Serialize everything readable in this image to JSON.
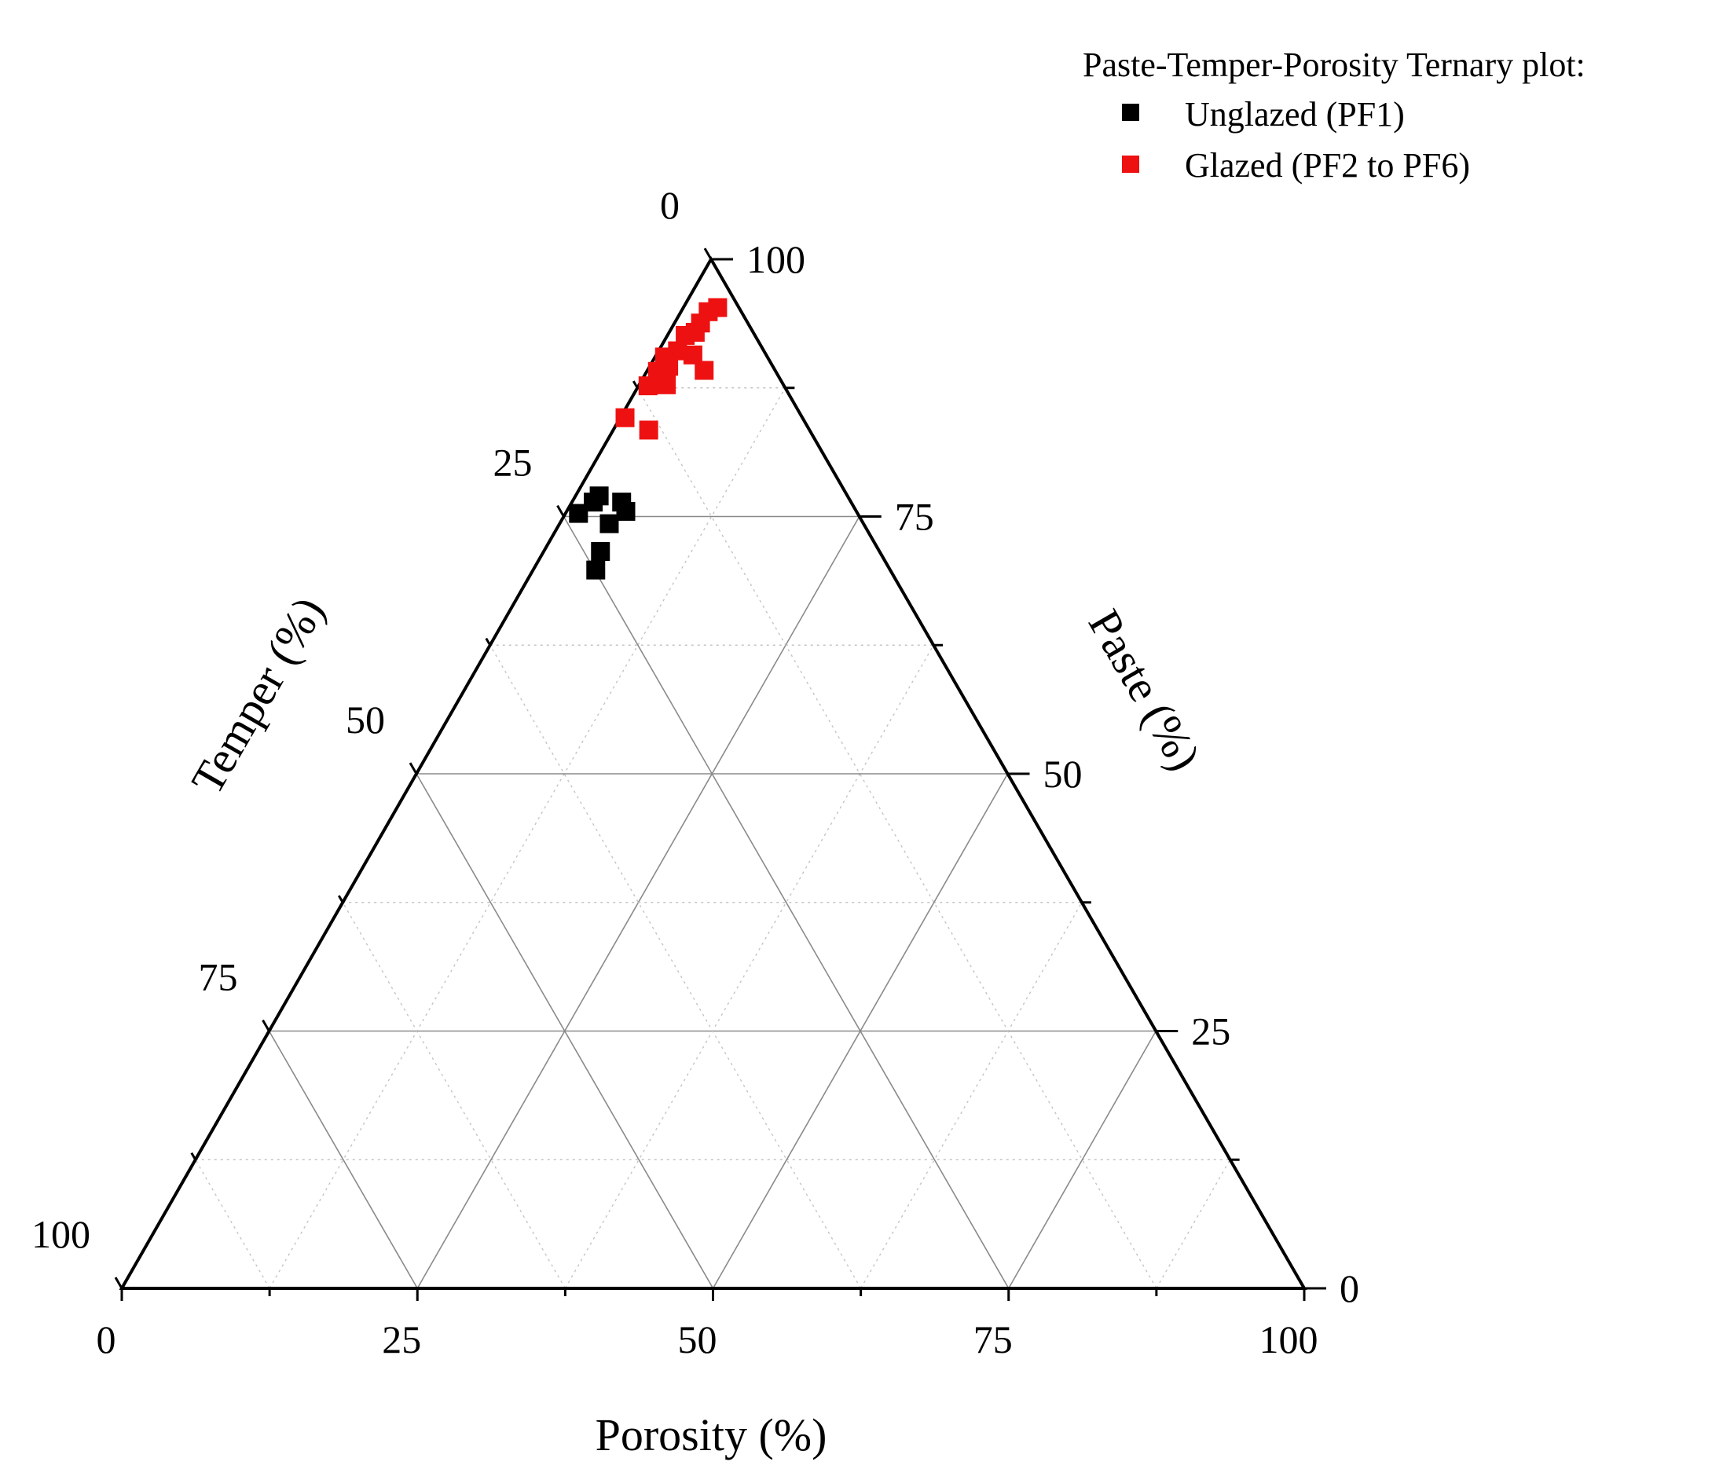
{
  "chart_data": {
    "type": "scatter",
    "subtype": "ternary",
    "legend": {
      "title": "Paste-Temper-Porosity Ternary plot:",
      "placement": "top-right"
    },
    "axes": {
      "paste": {
        "label": "Paste (%)",
        "ticks": [
          "0",
          "25",
          "50",
          "75",
          "100"
        ],
        "range": [
          0,
          100
        ]
      },
      "temper": {
        "label": "Temper (%)",
        "ticks": [
          "0",
          "25",
          "50",
          "75",
          "100"
        ],
        "range": [
          0,
          100
        ]
      },
      "porosity": {
        "label": "Porosity (%)",
        "ticks": [
          "0",
          "25",
          "50",
          "75",
          "100"
        ],
        "range": [
          0,
          100
        ]
      }
    },
    "grid": true,
    "series": [
      {
        "name": "Unglazed  (PF1)",
        "color": "#000000",
        "marker": "square",
        "points": [
          {
            "porosity": 4.2,
            "temper": 19.4,
            "paste": 76.4
          },
          {
            "porosity": 2.0,
            "temper": 21.0,
            "paste": 77.0
          },
          {
            "porosity": 5.0,
            "temper": 19.5,
            "paste": 75.5
          },
          {
            "porosity": 1.8,
            "temper": 21.8,
            "paste": 76.4
          },
          {
            "porosity": 4.2,
            "temper": 21.5,
            "paste": 74.3
          },
          {
            "porosity": 1.1,
            "temper": 23.6,
            "paste": 75.3
          },
          {
            "porosity": 4.8,
            "temper": 23.6,
            "paste": 71.6
          },
          {
            "porosity": 5.3,
            "temper": 24.9,
            "paste": 69.8
          }
        ]
      },
      {
        "name": "Glazed (PF2 to PF6)",
        "color": "#ee1111",
        "marker": "square",
        "points": [
          {
            "porosity": 2.9,
            "temper": 1.8,
            "paste": 95.3
          },
          {
            "porosity": 2.3,
            "temper": 2.8,
            "paste": 94.9
          },
          {
            "porosity": 2.2,
            "temper": 4.0,
            "paste": 93.8
          },
          {
            "porosity": 2.2,
            "temper": 4.9,
            "paste": 92.9
          },
          {
            "porosity": 1.5,
            "temper": 5.9,
            "paste": 92.6
          },
          {
            "porosity": 3.1,
            "temper": 6.2,
            "paste": 90.7
          },
          {
            "porosity": 4.8,
            "temper": 6.0,
            "paste": 89.2
          },
          {
            "porosity": 1.6,
            "temper": 7.3,
            "paste": 91.1
          },
          {
            "porosity": 0.8,
            "temper": 8.7,
            "paste": 90.5
          },
          {
            "porosity": 1.6,
            "temper": 8.8,
            "paste": 89.6
          },
          {
            "porosity": 0.9,
            "temper": 10.0,
            "paste": 89.1
          },
          {
            "porosity": 2.3,
            "temper": 9.9,
            "paste": 87.8
          },
          {
            "porosity": 0.8,
            "temper": 11.5,
            "paste": 87.7
          },
          {
            "porosity": 0.4,
            "temper": 15.0,
            "paste": 84.6
          },
          {
            "porosity": 3.0,
            "temper": 13.6,
            "paste": 83.4
          }
        ]
      }
    ]
  }
}
